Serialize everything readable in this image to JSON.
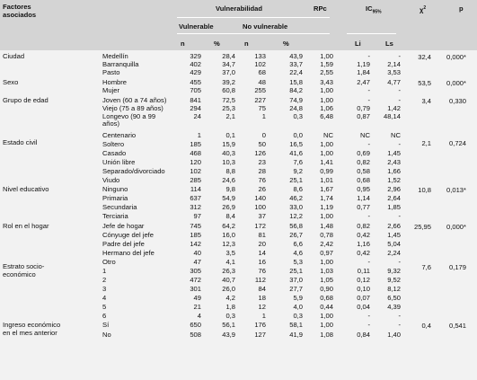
{
  "header": {
    "factor_line1": "Factores",
    "factor_line2": "asociados",
    "vulnerabilidad": "Vulnerabilidad",
    "vulnerable": "Vulnerable",
    "no_vulnerable": "No vulnerable",
    "n": "n",
    "pct": "%",
    "rpc": "RPc",
    "ic": "IC",
    "ic_sub": "95%",
    "li": "Li",
    "ls": "Ls",
    "chi": "χ",
    "chi_sup": "2",
    "p": "p"
  },
  "groups": [
    {
      "label": [
        "Ciudad"
      ],
      "chi": "32,4",
      "p": "0,000*",
      "rows": [
        {
          "cat": "Medellín",
          "n1": "329",
          "p1": "28,4",
          "n2": "133",
          "p2": "43,9",
          "rpc": "1,00",
          "li": "-",
          "ls": "-"
        },
        {
          "cat": "Barranquilla",
          "n1": "402",
          "p1": "34,7",
          "n2": "102",
          "p2": "33,7",
          "rpc": "1,59",
          "li": "1,19",
          "ls": "2,14"
        },
        {
          "cat": "Pasto",
          "n1": "429",
          "p1": "37,0",
          "n2": "68",
          "p2": "22,4",
          "rpc": "2,55",
          "li": "1,84",
          "ls": "3,53"
        }
      ]
    },
    {
      "label": [
        "Sexo"
      ],
      "chi": "53,5",
      "p": "0,000*",
      "rows": [
        {
          "cat": "Hombre",
          "n1": "455",
          "p1": "39,2",
          "n2": "48",
          "p2": "15,8",
          "rpc": "3,43",
          "li": "2,47",
          "ls": "4,77"
        },
        {
          "cat": "Mujer",
          "n1": "705",
          "p1": "60,8",
          "n2": "255",
          "p2": "84,2",
          "rpc": "1,00",
          "li": "-",
          "ls": "-"
        }
      ]
    },
    {
      "label": [
        "Grupo de edad"
      ],
      "chi": "3,4",
      "p": "0,330",
      "rows": [
        {
          "cat": "Joven (60 a 74 años)",
          "n1": "841",
          "p1": "72,5",
          "n2": "227",
          "p2": "74,9",
          "rpc": "1,00",
          "li": "-",
          "ls": "-"
        },
        {
          "cat": "Viejo (75 a 89 años)",
          "n1": "294",
          "p1": "25,3",
          "n2": "75",
          "p2": "24,8",
          "rpc": "1,06",
          "li": "0,79",
          "ls": "1,42"
        },
        {
          "cat": "Longevo (90 a 99",
          "cat2": "años)",
          "n1": "24",
          "p1": "2,1",
          "n2": "1",
          "p2": "0,3",
          "rpc": "6,48",
          "li": "0,87",
          "ls": "48,14"
        },
        {
          "cat": "Centenario",
          "n1": "1",
          "p1": "0,1",
          "n2": "0",
          "p2": "0,0",
          "rpc": "NC",
          "li": "NC",
          "ls": "NC"
        }
      ]
    },
    {
      "label": [
        "Estado civil"
      ],
      "chi": "2,1",
      "p": "0,724",
      "rows": [
        {
          "cat": "Soltero",
          "n1": "185",
          "p1": "15,9",
          "n2": "50",
          "p2": "16,5",
          "rpc": "1,00",
          "li": "-",
          "ls": "-"
        },
        {
          "cat": "Casado",
          "n1": "468",
          "p1": "40,3",
          "n2": "126",
          "p2": "41,6",
          "rpc": "1,00",
          "li": "0,69",
          "ls": "1,45"
        },
        {
          "cat": "Unión libre",
          "n1": "120",
          "p1": "10,3",
          "n2": "23",
          "p2": "7,6",
          "rpc": "1,41",
          "li": "0,82",
          "ls": "2,43"
        },
        {
          "cat": "Separado/divorciado",
          "n1": "102",
          "p1": "8,8",
          "n2": "28",
          "p2": "9,2",
          "rpc": "0,99",
          "li": "0,58",
          "ls": "1,66"
        },
        {
          "cat": "Viudo",
          "n1": "285",
          "p1": "24,6",
          "n2": "76",
          "p2": "25,1",
          "rpc": "1,01",
          "li": "0,68",
          "ls": "1,52"
        }
      ]
    },
    {
      "label": [
        "Nivel educativo"
      ],
      "chi": "10,8",
      "p": "0,013*",
      "rows": [
        {
          "cat": "Ninguno",
          "n1": "114",
          "p1": "9,8",
          "n2": "26",
          "p2": "8,6",
          "rpc": "1,67",
          "li": "0,95",
          "ls": "2,96"
        },
        {
          "cat": "Primaria",
          "n1": "637",
          "p1": "54,9",
          "n2": "140",
          "p2": "46,2",
          "rpc": "1,74",
          "li": "1,14",
          "ls": "2,64"
        },
        {
          "cat": "Secundaria",
          "n1": "312",
          "p1": "26,9",
          "n2": "100",
          "p2": "33,0",
          "rpc": "1,19",
          "li": "0,77",
          "ls": "1,85"
        },
        {
          "cat": "Terciaria",
          "n1": "97",
          "p1": "8,4",
          "n2": "37",
          "p2": "12,2",
          "rpc": "1,00",
          "li": "-",
          "ls": "-"
        }
      ]
    },
    {
      "label": [
        "Rol en el hogar"
      ],
      "chi": "25,95",
      "p": "0,000*",
      "rows": [
        {
          "cat": "Jefe de hogar",
          "n1": "745",
          "p1": "64,2",
          "n2": "172",
          "p2": "56,8",
          "rpc": "1,48",
          "li": "0,82",
          "ls": "2,66"
        },
        {
          "cat": "Cónyuge del jefe",
          "n1": "185",
          "p1": "16,0",
          "n2": "81",
          "p2": "26,7",
          "rpc": "0,78",
          "li": "0,42",
          "ls": "1,45"
        },
        {
          "cat": "Padre del jefe",
          "n1": "142",
          "p1": "12,3",
          "n2": "20",
          "p2": "6,6",
          "rpc": "2,42",
          "li": "1,16",
          "ls": "5,04"
        },
        {
          "cat": "Hermano del jefe",
          "n1": "40",
          "p1": "3,5",
          "n2": "14",
          "p2": "4,6",
          "rpc": "0,97",
          "li": "0,42",
          "ls": "2,24"
        },
        {
          "cat": "Otro",
          "n1": "47",
          "p1": "4,1",
          "n2": "16",
          "p2": "5,3",
          "rpc": "1,00",
          "li": "-",
          "ls": "-"
        }
      ]
    },
    {
      "label": [
        "Estrato socio-",
        "económico"
      ],
      "chi": "7,6",
      "p": "0,179",
      "rows": [
        {
          "cat": "1",
          "n1": "305",
          "p1": "26,3",
          "n2": "76",
          "p2": "25,1",
          "rpc": "1,03",
          "li": "0,11",
          "ls": "9,32"
        },
        {
          "cat": "2",
          "n1": "472",
          "p1": "40,7",
          "n2": "112",
          "p2": "37,0",
          "rpc": "1,05",
          "li": "0,12",
          "ls": "9,52"
        },
        {
          "cat": "3",
          "n1": "301",
          "p1": "26,0",
          "n2": "84",
          "p2": "27,7",
          "rpc": "0,90",
          "li": "0,10",
          "ls": "8,12"
        },
        {
          "cat": "4",
          "n1": "49",
          "p1": "4,2",
          "n2": "18",
          "p2": "5,9",
          "rpc": "0,68",
          "li": "0,07",
          "ls": "6,50"
        },
        {
          "cat": "5",
          "n1": "21",
          "p1": "1,8",
          "n2": "12",
          "p2": "4,0",
          "rpc": "0,44",
          "li": "0,04",
          "ls": "4,39"
        },
        {
          "cat": "6",
          "n1": "4",
          "p1": "0,3",
          "n2": "1",
          "p2": "0,3",
          "rpc": "1,00",
          "li": "-",
          "ls": "-"
        }
      ]
    },
    {
      "label": [
        "Ingreso económico",
        "en el mes anterior"
      ],
      "chi": "0,4",
      "p": "0,541",
      "rows": [
        {
          "cat": "Sí",
          "n1": "650",
          "p1": "56,1",
          "n2": "176",
          "p2": "58,1",
          "rpc": "1,00",
          "li": "-",
          "ls": "-"
        },
        {
          "cat": "No",
          "n1": "508",
          "p1": "43,9",
          "n2": "127",
          "p2": "41,9",
          "rpc": "1,08",
          "li": "0,84",
          "ls": "1,40"
        }
      ]
    }
  ]
}
